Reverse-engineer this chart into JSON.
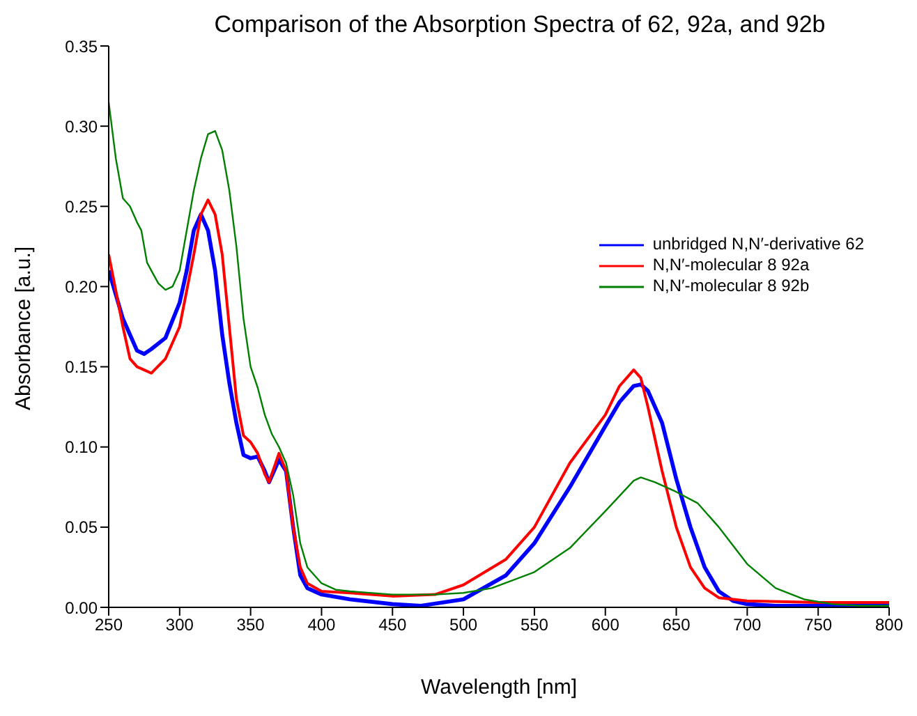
{
  "chart_data": {
    "type": "line",
    "title": "Comparison of the Absorption Spectra of 62, 92a, and 92b",
    "xlabel": "Wavelength [nm]",
    "ylabel": "Absorbance [a.u.]",
    "xlim": [
      250,
      800
    ],
    "xticks": [
      250,
      300,
      350,
      400,
      450,
      500,
      550,
      600,
      650,
      700,
      750,
      800
    ],
    "ylim": [
      0,
      0.35
    ],
    "yticks": [
      {
        "value": 0,
        "label": "0.00"
      },
      0.05,
      {
        "value": 0.1,
        "label": "0.10"
      },
      0.15,
      {
        "value": 0.2,
        "label": "0.20"
      },
      0.25,
      {
        "value": 0.3,
        "label": "0.30"
      },
      0.35
    ],
    "grid": false,
    "legend": "right",
    "marker": "none",
    "line_style": "solid",
    "series": [
      {
        "name": "unbridged N,N′-derivative 62",
        "color": "#0000ff",
        "x": [
          250,
          260,
          270,
          275,
          280,
          290,
          300,
          305,
          310,
          315,
          320,
          325,
          330,
          335,
          340,
          345,
          350,
          355,
          360,
          363,
          370,
          375,
          380,
          385,
          390,
          400,
          420,
          450,
          470,
          500,
          530,
          550,
          575,
          600,
          610,
          620,
          625,
          630,
          640,
          650,
          660,
          670,
          680,
          690,
          700,
          720,
          800
        ],
        "values": [
          0.21,
          0.18,
          0.16,
          0.158,
          0.161,
          0.168,
          0.19,
          0.21,
          0.235,
          0.245,
          0.235,
          0.21,
          0.17,
          0.14,
          0.115,
          0.095,
          0.093,
          0.094,
          0.085,
          0.078,
          0.092,
          0.085,
          0.05,
          0.02,
          0.012,
          0.008,
          0.005,
          0.002,
          0.001,
          0.005,
          0.02,
          0.04,
          0.075,
          0.113,
          0.128,
          0.138,
          0.139,
          0.135,
          0.115,
          0.08,
          0.05,
          0.025,
          0.01,
          0.004,
          0.002,
          0.001,
          0.001
        ]
      },
      {
        "name": "N,N′-molecular 8 92a",
        "color": "#ff0000",
        "x": [
          250,
          260,
          265,
          270,
          275,
          280,
          290,
          300,
          310,
          315,
          320,
          325,
          330,
          335,
          340,
          345,
          350,
          355,
          360,
          363,
          370,
          375,
          380,
          385,
          390,
          400,
          420,
          450,
          480,
          500,
          530,
          550,
          575,
          600,
          610,
          620,
          625,
          630,
          640,
          650,
          660,
          670,
          680,
          700,
          750,
          800
        ],
        "values": [
          0.22,
          0.175,
          0.155,
          0.15,
          0.148,
          0.146,
          0.155,
          0.175,
          0.22,
          0.245,
          0.254,
          0.245,
          0.22,
          0.175,
          0.13,
          0.107,
          0.103,
          0.096,
          0.083,
          0.078,
          0.096,
          0.085,
          0.05,
          0.025,
          0.015,
          0.01,
          0.009,
          0.007,
          0.008,
          0.014,
          0.03,
          0.05,
          0.09,
          0.12,
          0.138,
          0.148,
          0.143,
          0.125,
          0.085,
          0.05,
          0.025,
          0.012,
          0.006,
          0.004,
          0.003,
          0.003
        ]
      },
      {
        "name": "N,N′-molecular 8 92b",
        "color": "#008000",
        "x": [
          250,
          255,
          260,
          265,
          270,
          273,
          277,
          280,
          285,
          290,
          295,
          300,
          305,
          310,
          315,
          320,
          325,
          330,
          335,
          340,
          345,
          350,
          355,
          360,
          365,
          370,
          375,
          380,
          385,
          390,
          400,
          410,
          420,
          450,
          480,
          500,
          520,
          550,
          575,
          600,
          620,
          625,
          635,
          650,
          665,
          680,
          700,
          720,
          740,
          760,
          780,
          800
        ],
        "values": [
          0.315,
          0.28,
          0.255,
          0.25,
          0.24,
          0.235,
          0.215,
          0.21,
          0.202,
          0.198,
          0.2,
          0.21,
          0.235,
          0.26,
          0.28,
          0.295,
          0.297,
          0.285,
          0.26,
          0.225,
          0.18,
          0.15,
          0.137,
          0.12,
          0.108,
          0.1,
          0.09,
          0.07,
          0.04,
          0.025,
          0.015,
          0.011,
          0.01,
          0.008,
          0.008,
          0.009,
          0.012,
          0.022,
          0.037,
          0.06,
          0.079,
          0.081,
          0.078,
          0.072,
          0.065,
          0.05,
          0.027,
          0.012,
          0.005,
          0.002,
          0.001,
          0.001
        ]
      }
    ]
  }
}
